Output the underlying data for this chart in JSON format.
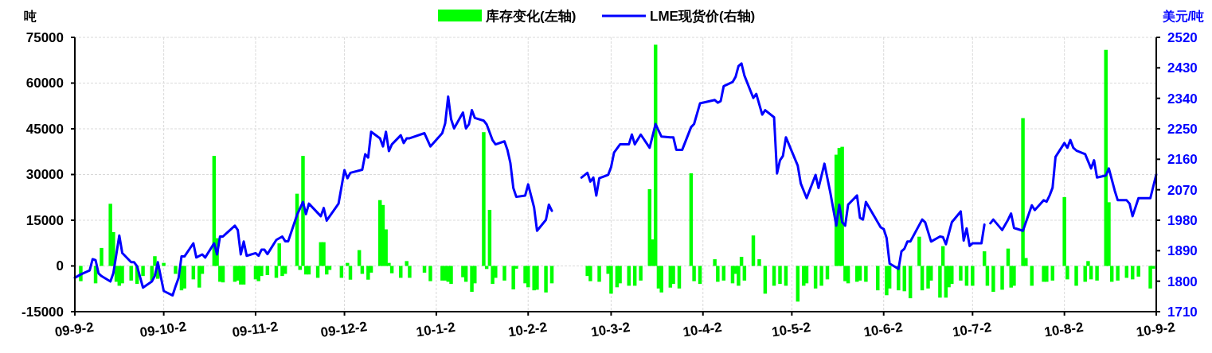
{
  "chart_data": {
    "type": "bar",
    "ylabel": "吨",
    "y2label": "美元/吨",
    "legend": "top",
    "grid": true,
    "xlim": [
      "2009-09-02",
      "2010-09-02"
    ],
    "xticks": [
      {
        "value": "2009-09-02",
        "label": "09-9-2"
      },
      {
        "value": "2009-10-02",
        "label": "09-10-2"
      },
      {
        "value": "2009-11-02",
        "label": "09-11-2"
      },
      {
        "value": "2009-12-02",
        "label": "09-12-2"
      },
      {
        "value": "2010-01-02",
        "label": "10-1-2"
      },
      {
        "value": "2010-02-02",
        "label": "10-2-2"
      },
      {
        "value": "2010-03-02",
        "label": "10-3-2"
      },
      {
        "value": "2010-04-02",
        "label": "10-4-2"
      },
      {
        "value": "2010-05-02",
        "label": "10-5-2"
      },
      {
        "value": "2010-06-02",
        "label": "10-6-2"
      },
      {
        "value": "2010-07-02",
        "label": "10-7-2"
      },
      {
        "value": "2010-08-02",
        "label": "10-8-2"
      },
      {
        "value": "2010-09-02",
        "label": "10-9-2"
      }
    ],
    "ylim": [
      -15000,
      75000
    ],
    "yticks": [
      -15000,
      0,
      15000,
      30000,
      45000,
      60000,
      75000
    ],
    "y2lim": [
      1710,
      2520
    ],
    "y2ticks": [
      1710,
      1800,
      1890,
      1980,
      2070,
      2160,
      2250,
      2340,
      2430,
      2520
    ],
    "series": [
      {
        "name": "库存变化(左轴)",
        "color": "#00ff00",
        "x": [
          "2009-09-04",
          "2009-09-09",
          "2009-09-11",
          "2009-09-14",
          "2009-09-15",
          "2009-09-16",
          "2009-09-17",
          "2009-09-18",
          "2009-09-21",
          "2009-09-23",
          "2009-09-25",
          "2009-09-28",
          "2009-09-29",
          "2009-09-30",
          "2009-10-02",
          "2009-10-06",
          "2009-10-08",
          "2009-10-09",
          "2009-10-12",
          "2009-10-14",
          "2009-10-15",
          "2009-10-19",
          "2009-10-20",
          "2009-10-21",
          "2009-10-22",
          "2009-10-26",
          "2009-10-27",
          "2009-10-28",
          "2009-10-29",
          "2009-11-02",
          "2009-11-03",
          "2009-11-04",
          "2009-11-06",
          "2009-11-09",
          "2009-11-10",
          "2009-11-11",
          "2009-11-12",
          "2009-11-16",
          "2009-11-17",
          "2009-11-18",
          "2009-11-19",
          "2009-11-20",
          "2009-11-23",
          "2009-11-24",
          "2009-11-25",
          "2009-11-26",
          "2009-11-27",
          "2009-12-01",
          "2009-12-03",
          "2009-12-04",
          "2009-12-07",
          "2009-12-08",
          "2009-12-10",
          "2009-12-11",
          "2009-12-14",
          "2009-12-15",
          "2009-12-16",
          "2009-12-17",
          "2009-12-18",
          "2009-12-21",
          "2009-12-23",
          "2009-12-24",
          "2009-12-29",
          "2009-12-31",
          "2010-01-04",
          "2010-01-05",
          "2010-01-06",
          "2010-01-07",
          "2010-01-11",
          "2010-01-12",
          "2010-01-14",
          "2010-01-15",
          "2010-01-18",
          "2010-01-19",
          "2010-01-20",
          "2010-01-21",
          "2010-01-22",
          "2010-01-25",
          "2010-01-28",
          "2010-01-29",
          "2010-02-01",
          "2010-02-02",
          "2010-02-04",
          "2010-02-05",
          "2010-02-08",
          "2010-02-10",
          "2010-02-22",
          "2010-02-23",
          "2010-02-26",
          "2010-03-01",
          "2010-03-02",
          "2010-03-04",
          "2010-03-05",
          "2010-03-08",
          "2010-03-10",
          "2010-03-12",
          "2010-03-15",
          "2010-03-16",
          "2010-03-17",
          "2010-03-18",
          "2010-03-19",
          "2010-03-22",
          "2010-03-23",
          "2010-03-25",
          "2010-03-29",
          "2010-03-30",
          "2010-04-01",
          "2010-04-06",
          "2010-04-07",
          "2010-04-09",
          "2010-04-12",
          "2010-04-13",
          "2010-04-14",
          "2010-04-15",
          "2010-04-16",
          "2010-04-19",
          "2010-04-21",
          "2010-04-23",
          "2010-04-26",
          "2010-04-28",
          "2010-04-30",
          "2010-05-04",
          "2010-05-06",
          "2010-05-07",
          "2010-05-10",
          "2010-05-12",
          "2010-05-14",
          "2010-05-17",
          "2010-05-18",
          "2010-05-19",
          "2010-05-20",
          "2010-05-21",
          "2010-05-24",
          "2010-05-25",
          "2010-05-27",
          "2010-05-31",
          "2010-06-03",
          "2010-06-04",
          "2010-06-07",
          "2010-06-09",
          "2010-06-11",
          "2010-06-14",
          "2010-06-15",
          "2010-06-17",
          "2010-06-18",
          "2010-06-21",
          "2010-06-22",
          "2010-06-23",
          "2010-06-24",
          "2010-06-25",
          "2010-06-28",
          "2010-06-30",
          "2010-07-02",
          "2010-07-06",
          "2010-07-07",
          "2010-07-09",
          "2010-07-12",
          "2010-07-14",
          "2010-07-15",
          "2010-07-16",
          "2010-07-19",
          "2010-07-20",
          "2010-07-22",
          "2010-07-26",
          "2010-07-27",
          "2010-07-29",
          "2010-08-02",
          "2010-08-03",
          "2010-08-06",
          "2010-08-09",
          "2010-08-10",
          "2010-08-11",
          "2010-08-13",
          "2010-08-16",
          "2010-08-17",
          "2010-08-18",
          "2010-08-20",
          "2010-08-23",
          "2010-08-25",
          "2010-08-27",
          "2010-08-31",
          "2010-09-01"
        ],
        "values": [
          -5000,
          -5700,
          5900,
          20400,
          11100,
          -5200,
          -6500,
          -5700,
          -4800,
          -5900,
          -3300,
          -4800,
          3200,
          -4200,
          1000,
          -2600,
          -8000,
          -7400,
          -4400,
          -7100,
          -2600,
          36100,
          9100,
          -5200,
          -5400,
          -5200,
          -4800,
          -6100,
          -6100,
          -4400,
          -5000,
          -3300,
          -3000,
          -3900,
          7400,
          -3300,
          -2600,
          23700,
          -1300,
          36100,
          -2800,
          -2800,
          -3900,
          7800,
          7800,
          -2800,
          -1300,
          -3900,
          1000,
          -4500,
          5200,
          -2600,
          -4500,
          -2200,
          21600,
          20000,
          12000,
          1000,
          -2400,
          -3900,
          1600,
          -3900,
          -2200,
          -5000,
          -4800,
          -4800,
          -5200,
          -5900,
          -3700,
          -5200,
          -8500,
          -5700,
          43900,
          -1000,
          18400,
          -5900,
          -3900,
          -4800,
          -7700,
          -900,
          -5700,
          -7000,
          -8000,
          -7800,
          -8700,
          -5700,
          -3300,
          -5000,
          -5200,
          -2600,
          -9100,
          -7000,
          -5700,
          -6500,
          -6500,
          -4800,
          25200,
          8700,
          72600,
          -7400,
          -8700,
          -7100,
          -5900,
          -7400,
          30400,
          -5000,
          -5900,
          2200,
          -5200,
          -4800,
          -5700,
          -2600,
          -6500,
          3000,
          -4800,
          10000,
          2200,
          -9100,
          -6500,
          -5900,
          -6500,
          -11700,
          -6500,
          -5700,
          -7400,
          -6500,
          -4400,
          36500,
          38700,
          39100,
          -5000,
          -5700,
          -5200,
          -4800,
          -5200,
          -8000,
          -9600,
          -7400,
          -8000,
          -8300,
          -10600,
          9600,
          -8000,
          -7400,
          -4800,
          -10400,
          6500,
          -10400,
          -7000,
          -5900,
          -4800,
          -6500,
          -6500,
          4800,
          -6500,
          -8500,
          -7800,
          5700,
          -7100,
          -6500,
          48500,
          2600,
          -6500,
          -5200,
          -5200,
          -4800,
          22600,
          -4400,
          -6500,
          -5200,
          1600,
          -4400,
          -4800,
          70900,
          20900,
          -5200,
          -4800,
          -3900,
          -4400,
          -3500,
          -7400,
          -900
        ]
      },
      {
        "name": "LME现货价(右轴)",
        "type": "line",
        "axis": "y2",
        "color": "#0000ff",
        "x": [
          "2009-09-02",
          "2009-09-04",
          "2009-09-07",
          "2009-09-08",
          "2009-09-09",
          "2009-09-10",
          "2009-09-11",
          "2009-09-14",
          "2009-09-15",
          "2009-09-17",
          "2009-09-18",
          "2009-09-21",
          "2009-09-22",
          "2009-09-23",
          "2009-09-25",
          "2009-09-28",
          "2009-09-29",
          "2009-09-30",
          "2009-10-02",
          "2009-10-05",
          "2009-10-06",
          "2009-10-07",
          "2009-10-08",
          "2009-10-09",
          "2009-10-12",
          "2009-10-13",
          "2009-10-15",
          "2009-10-16",
          "2009-10-19",
          "2009-10-20",
          "2009-10-21",
          "2009-10-22",
          "2009-10-26",
          "2009-10-27",
          "2009-10-28",
          "2009-10-29",
          "2009-10-30",
          "2009-11-02",
          "2009-11-03",
          "2009-11-04",
          "2009-11-05",
          "2009-11-06",
          "2009-11-09",
          "2009-11-11",
          "2009-11-12",
          "2009-11-13",
          "2009-11-16",
          "2009-11-18",
          "2009-11-19",
          "2009-11-20",
          "2009-11-24",
          "2009-11-25",
          "2009-11-26",
          "2009-11-30",
          "2009-12-02",
          "2009-12-03",
          "2009-12-04",
          "2009-12-08",
          "2009-12-09",
          "2009-12-10",
          "2009-12-11",
          "2009-12-14",
          "2009-12-15",
          "2009-12-16",
          "2009-12-17",
          "2009-12-18",
          "2009-12-21",
          "2009-12-22",
          "2009-12-23",
          "2009-12-24",
          "2009-12-29",
          "2009-12-31",
          "2010-01-04",
          "2010-01-05",
          "2010-01-06",
          "2010-01-07",
          "2010-01-08",
          "2010-01-11",
          "2010-01-12",
          "2010-01-13",
          "2010-01-14",
          "2010-01-15",
          "2010-01-18",
          "2010-01-19",
          "2010-01-21",
          "2010-01-22",
          "2010-01-25",
          "2010-01-26",
          "2010-01-27",
          "2010-01-28",
          "2010-01-29",
          "2010-02-01",
          "2010-02-02",
          "2010-02-04",
          "2010-02-05",
          "2010-02-08",
          "2010-02-09",
          "2010-02-10",
          "2010-02-15",
          "2010-02-20",
          "2010-02-22",
          "2010-02-23",
          "2010-02-24",
          "2010-02-25",
          "2010-02-26",
          "2010-03-01",
          "2010-03-02",
          "2010-03-03",
          "2010-03-05",
          "2010-03-08",
          "2010-03-09",
          "2010-03-10",
          "2010-03-12",
          "2010-03-15",
          "2010-03-17",
          "2010-03-19",
          "2010-03-22",
          "2010-03-23",
          "2010-03-24",
          "2010-03-26",
          "2010-03-29",
          "2010-03-30",
          "2010-04-01",
          "2010-04-06",
          "2010-04-07",
          "2010-04-08",
          "2010-04-09",
          "2010-04-12",
          "2010-04-13",
          "2010-04-14",
          "2010-04-15",
          "2010-04-16",
          "2010-04-19",
          "2010-04-20",
          "2010-04-22",
          "2010-04-23",
          "2010-04-26",
          "2010-04-27",
          "2010-04-28",
          "2010-04-29",
          "2010-04-30",
          "2010-05-04",
          "2010-05-05",
          "2010-05-07",
          "2010-05-10",
          "2010-05-11",
          "2010-05-13",
          "2010-05-15",
          "2010-05-17",
          "2010-05-18",
          "2010-05-19",
          "2010-05-20",
          "2010-05-21",
          "2010-05-24",
          "2010-05-25",
          "2010-05-26",
          "2010-05-27",
          "2010-06-01",
          "2010-06-02",
          "2010-06-03",
          "2010-06-04",
          "2010-06-07",
          "2010-06-08",
          "2010-06-09",
          "2010-06-10",
          "2010-06-11",
          "2010-06-15",
          "2010-06-16",
          "2010-06-18",
          "2010-06-21",
          "2010-06-22",
          "2010-06-23",
          "2010-06-25",
          "2010-06-28",
          "2010-06-29",
          "2010-06-30",
          "2010-07-01",
          "2010-07-02",
          "2010-07-05",
          "2010-07-06",
          "2010-07-07",
          "2010-07-08",
          "2010-07-09",
          "2010-07-12",
          "2010-07-14",
          "2010-07-15",
          "2010-07-16",
          "2010-07-19",
          "2010-07-22",
          "2010-07-23",
          "2010-07-26",
          "2010-07-27",
          "2010-07-28",
          "2010-07-29",
          "2010-07-30",
          "2010-08-02",
          "2010-08-03",
          "2010-08-04",
          "2010-08-05",
          "2010-08-06",
          "2010-08-09",
          "2010-08-11",
          "2010-08-12",
          "2010-08-13",
          "2010-08-16",
          "2010-08-17",
          "2010-08-19",
          "2010-08-20",
          "2010-08-23",
          "2010-08-24",
          "2010-08-25",
          "2010-08-27",
          "2010-08-31",
          "2010-09-02"
        ],
        "values": [
          1810,
          1820,
          1832,
          1865,
          1862,
          1823,
          1815,
          1799,
          1824,
          1935,
          1883,
          1856,
          1856,
          1844,
          1781,
          1799,
          1816,
          1856,
          1771,
          1758,
          1785,
          1809,
          1873,
          1873,
          1912,
          1870,
          1879,
          1870,
          1912,
          1879,
          1932,
          1932,
          1964,
          1951,
          1879,
          1917,
          1875,
          1883,
          1875,
          1893,
          1893,
          1880,
          1922,
          1932,
          1918,
          1918,
          1996,
          2034,
          1998,
          2029,
          1992,
          2016,
          1979,
          2029,
          2128,
          2104,
          2120,
          2129,
          2175,
          2165,
          2241,
          2222,
          2198,
          2241,
          2184,
          2204,
          2231,
          2208,
          2222,
          2222,
          2237,
          2198,
          2237,
          2266,
          2345,
          2278,
          2251,
          2298,
          2251,
          2263,
          2305,
          2282,
          2274,
          2263,
          2216,
          2204,
          2213,
          2188,
          2149,
          2075,
          2049,
          2053,
          2086,
          2018,
          1949,
          1981,
          2026,
          2008,
          null,
          2106,
          2120,
          2094,
          2106,
          2053,
          2104,
          2114,
          2137,
          2180,
          2204,
          2204,
          2233,
          2204,
          2233,
          2194,
          2264,
          2227,
          2225,
          2225,
          2188,
          2188,
          2255,
          2264,
          2325,
          2335,
          2327,
          2332,
          2376,
          2388,
          2403,
          2435,
          2443,
          2407,
          2341,
          2353,
          2292,
          2305,
          2284,
          2118,
          2157,
          2170,
          2225,
          2141,
          2089,
          2045,
          2114,
          2075,
          2147,
          2061,
          1964,
          2026,
          1974,
          1964,
          2026,
          2053,
          1987,
          1982,
          2034,
          1959,
          1954,
          1927,
          1852,
          1836,
          1888,
          1896,
          1917,
          1917,
          1982,
          1974,
          1917,
          1932,
          1930,
          1909,
          1974,
          2006,
          1920,
          1956,
          1904,
          1912,
          1912,
          1967,
          null,
          1971,
          1982,
          1951,
          1982,
          2000,
          1957,
          1949,
          2024,
          2010,
          2039,
          2035,
          2053,
          2076,
          2167,
          2208,
          2194,
          2217,
          2194,
          2186,
          2175,
          2133,
          2157,
          2106,
          2112,
          2133,
          2067,
          2039,
          2039,
          2029,
          1992,
          2045,
          2045,
          2115
        ]
      }
    ]
  }
}
